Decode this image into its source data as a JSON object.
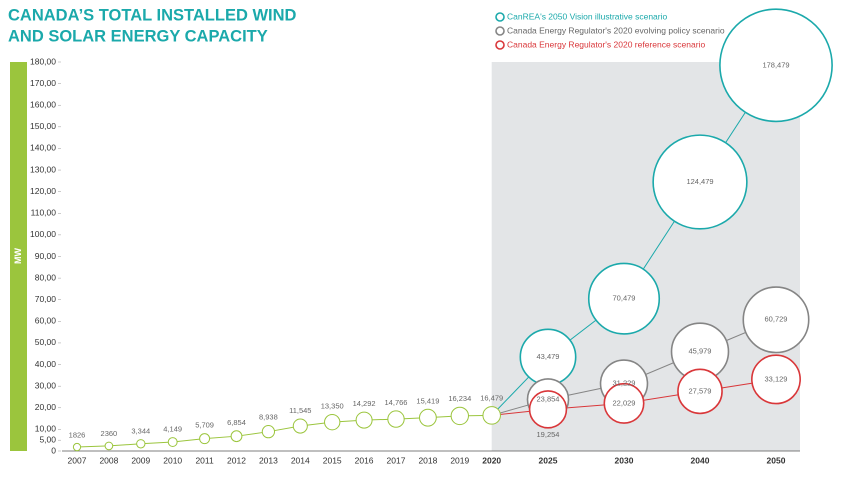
{
  "chart_data": {
    "type": "bubble",
    "title": [
      "CANADA’S TOTAL INSTALLED WIND",
      "AND SOLAR ENERGY CAPACITY"
    ],
    "y_label": "MW",
    "categories": [
      "2007",
      "2008",
      "2009",
      "2010",
      "2011",
      "2012",
      "2013",
      "2014",
      "2015",
      "2016",
      "2017",
      "2018",
      "2019",
      "2020",
      "2025",
      "2030",
      "2040",
      "2050"
    ],
    "ylim": [
      0,
      180
    ],
    "yticks": [
      0,
      {
        "value": 5,
        "label": "5,00"
      },
      {
        "value": 10,
        "label": "10,00"
      },
      {
        "value": 20,
        "label": "20,00"
      },
      {
        "value": 30,
        "label": "30,00"
      },
      {
        "value": 40,
        "label": "40,00"
      },
      {
        "value": 50,
        "label": "50,00"
      },
      {
        "value": 60,
        "label": "60,00"
      },
      {
        "value": 70,
        "label": "70,00"
      },
      {
        "value": 80,
        "label": "80,00"
      },
      {
        "value": 90,
        "label": "90,00"
      },
      {
        "value": 100,
        "label": "100,00"
      },
      {
        "value": 110,
        "label": "110,00"
      },
      {
        "value": 120,
        "label": "120,00"
      },
      {
        "value": 130,
        "label": "130,00"
      },
      {
        "value": 140,
        "label": "140,00"
      },
      {
        "value": 150,
        "label": "150,00"
      },
      {
        "value": 160,
        "label": "160,00"
      },
      {
        "value": 170,
        "label": "170,00"
      },
      {
        "value": 180,
        "label": "180,00"
      }
    ],
    "series": [
      {
        "color": "#9bc53d",
        "values": [
          1.826,
          2.36,
          3.344,
          4.149,
          5.709,
          6.854,
          8.938,
          11.545,
          13.35,
          14.292,
          14.766,
          15.419,
          16.234,
          16.479,
          null,
          null,
          null,
          null
        ],
        "value_labels": [
          "1826",
          "2360",
          "3,344",
          "4,149",
          "5,709",
          "6,854",
          "8,938",
          "11,545",
          "13,350",
          "14,292",
          "14,766",
          "15,419",
          "16,234",
          "16,479",
          null,
          null,
          null,
          null
        ]
      },
      {
        "name": "CanREA's 2050 Vision illustrative scenario",
        "color": "#1ba9ab",
        "values": [
          null,
          null,
          null,
          null,
          null,
          null,
          null,
          null,
          null,
          null,
          null,
          null,
          null,
          null,
          43.479,
          70.479,
          124.479,
          178.479
        ],
        "value_labels": [
          null,
          null,
          null,
          null,
          null,
          null,
          null,
          null,
          null,
          null,
          null,
          null,
          null,
          null,
          "43,479",
          "70,479",
          "124,479",
          "178,479"
        ]
      },
      {
        "name": "Canada Energy Regulator's 2020 evolving policy scenario",
        "color": "#858585",
        "values": [
          null,
          null,
          null,
          null,
          null,
          null,
          null,
          null,
          null,
          null,
          null,
          null,
          null,
          null,
          23.854,
          31.229,
          45.979,
          60.729
        ],
        "value_labels": [
          null,
          null,
          null,
          null,
          null,
          null,
          null,
          null,
          null,
          null,
          null,
          null,
          null,
          null,
          "23,854",
          "31,229",
          "45,979",
          "60,729"
        ]
      },
      {
        "name": "Canada Energy Regulator's 2020 reference scenario",
        "color": "#d9373a",
        "values": [
          null,
          null,
          null,
          null,
          null,
          null,
          null,
          null,
          null,
          null,
          null,
          null,
          null,
          null,
          19.254,
          22.029,
          27.579,
          33.129
        ],
        "value_labels": [
          null,
          null,
          null,
          null,
          null,
          null,
          null,
          null,
          null,
          null,
          null,
          null,
          null,
          null,
          "19,254",
          "22,029",
          "27,579",
          "33,129"
        ]
      }
    ]
  }
}
